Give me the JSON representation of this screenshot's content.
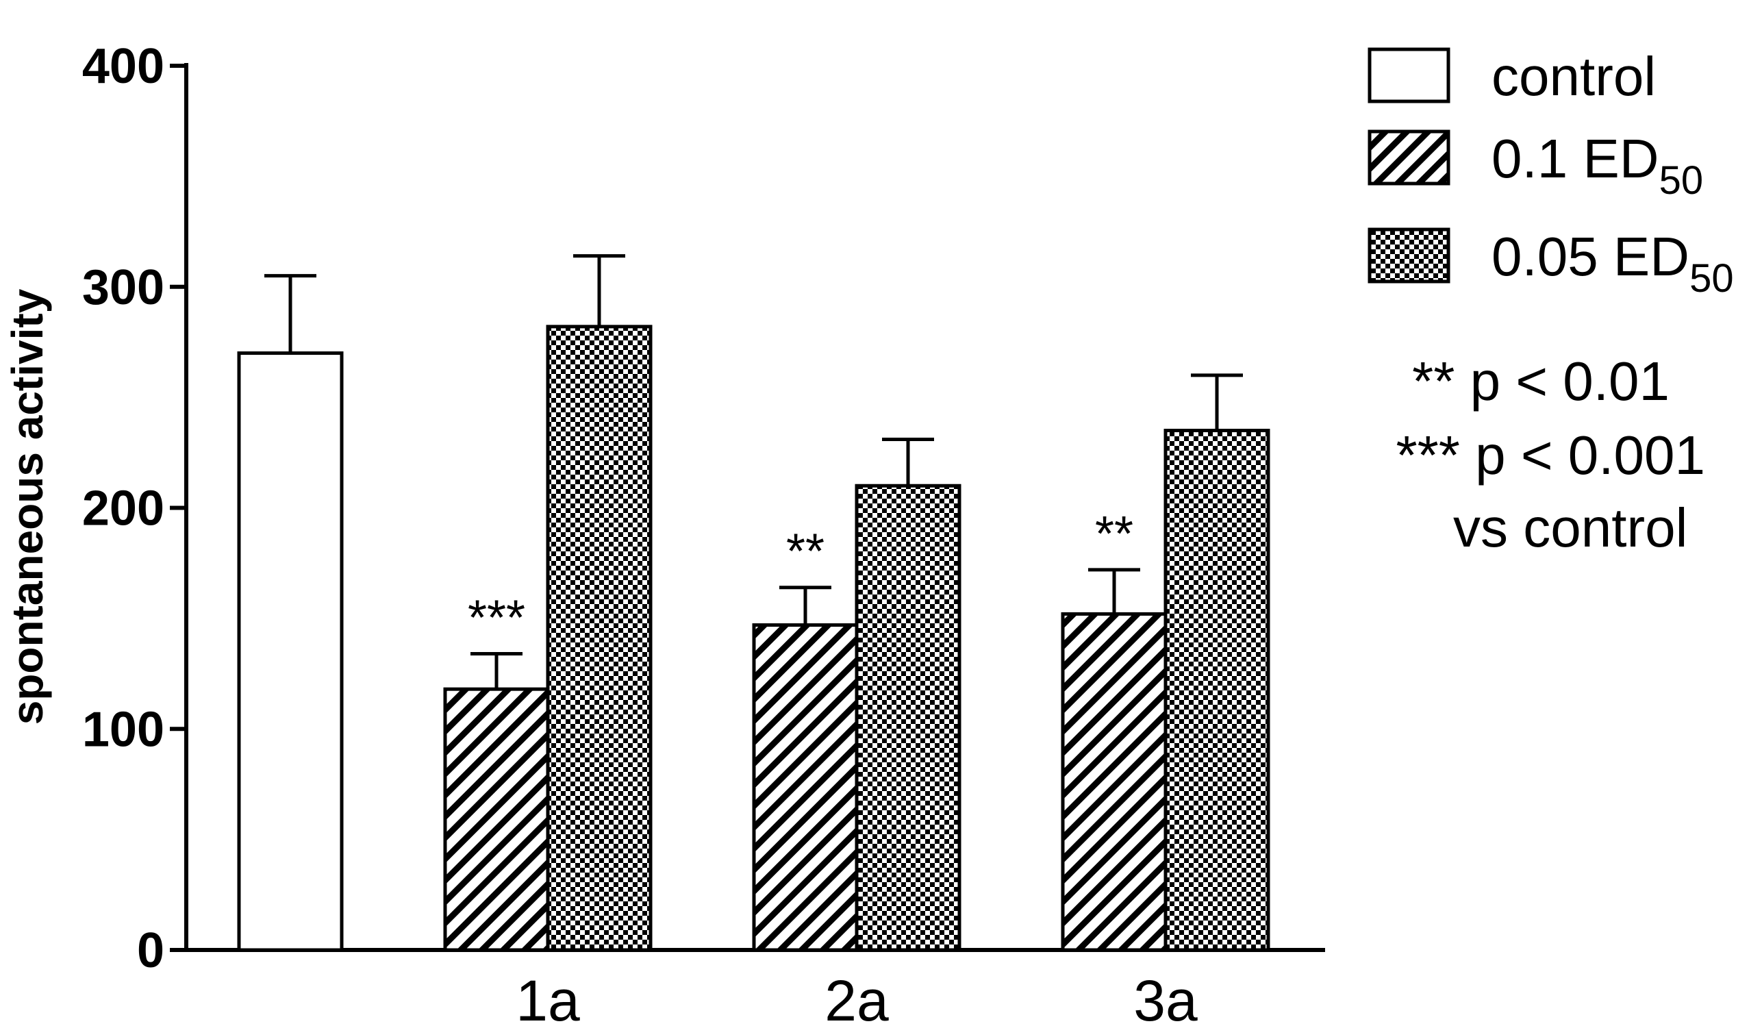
{
  "chart_data": {
    "type": "bar",
    "ylabel": "spontaneous activity",
    "xlabel": "",
    "ylim": [
      0,
      400
    ],
    "yticks": [
      0,
      100,
      200,
      300,
      400
    ],
    "grid": false,
    "legend_position": "top-right",
    "groups": [
      {
        "label": "",
        "bars": [
          {
            "series": "control",
            "value": 270,
            "error": 35,
            "sig": ""
          }
        ]
      },
      {
        "label": "1a",
        "bars": [
          {
            "series": "0.1 ED50",
            "value": 118,
            "error": 16,
            "sig": "***"
          },
          {
            "series": "0.05 ED50",
            "value": 282,
            "error": 32,
            "sig": ""
          }
        ]
      },
      {
        "label": "2a",
        "bars": [
          {
            "series": "0.1 ED50",
            "value": 147,
            "error": 17,
            "sig": "**"
          },
          {
            "series": "0.05 ED50",
            "value": 210,
            "error": 21,
            "sig": ""
          }
        ]
      },
      {
        "label": "3a",
        "bars": [
          {
            "series": "0.1 ED50",
            "value": 152,
            "error": 20,
            "sig": "**"
          },
          {
            "series": "0.05 ED50",
            "value": 235,
            "error": 25,
            "sig": ""
          }
        ]
      }
    ],
    "legend": [
      {
        "key": "control",
        "text": "control",
        "sub": "",
        "fill": "white"
      },
      {
        "key": "0.1 ED50",
        "text": "0.1 ED",
        "sub": "50",
        "fill": "hatch"
      },
      {
        "key": "0.05 ED50",
        "text": "0.05 ED",
        "sub": "50",
        "fill": "checker"
      }
    ],
    "annotations": [
      "** p < 0.01",
      "*** p < 0.001",
      "vs control"
    ]
  }
}
